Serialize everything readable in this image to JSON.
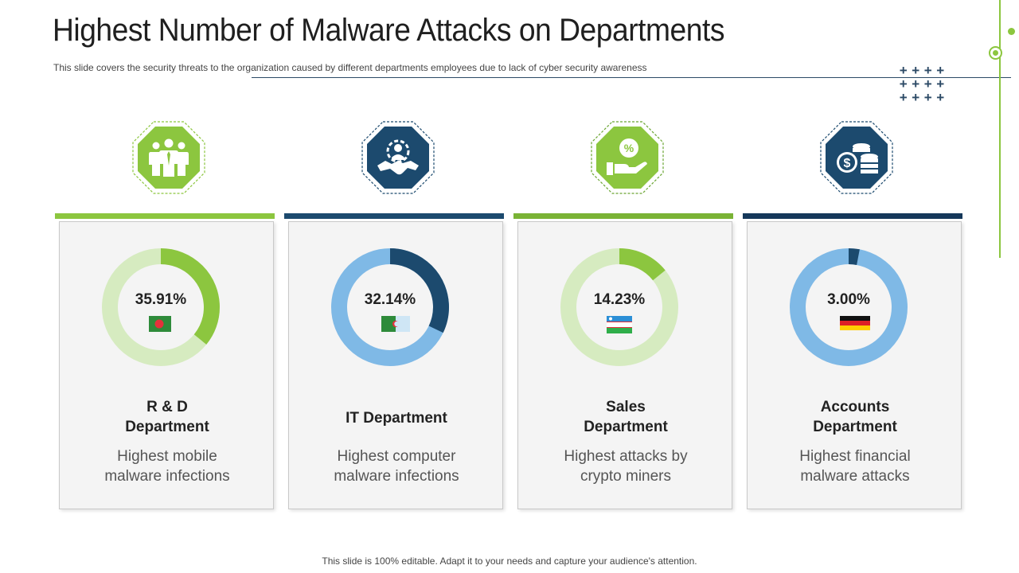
{
  "slide": {
    "title": "Highest Number of Malware Attacks on Departments",
    "subtitle": "This slide covers the security threats to the organization caused by different departments employees due to lack of cyber security awareness",
    "footer": "This slide is 100% editable. Adapt it to your needs and capture your audience's attention."
  },
  "colors": {
    "green": "#8cc63f",
    "green_light": "#d6ebc0",
    "navy": "#1c4a6e",
    "blue_light": "#7fb9e6"
  },
  "departments": [
    {
      "name_line1": "R & D",
      "name_line2": "Department",
      "description_line1": "Highest mobile",
      "description_line2": "malware infections",
      "percent_label": "35.91%",
      "percent_value": 35.91,
      "icon": "team-icon",
      "flag": "bangladesh-flag-icon",
      "theme": "green"
    },
    {
      "name_line1": "IT Department",
      "name_line2": "",
      "description_line1": "Highest computer",
      "description_line2": "malware infections",
      "percent_label": "32.14%",
      "percent_value": 32.14,
      "icon": "handshake-gear-icon",
      "flag": "algeria-flag-icon",
      "theme": "navy"
    },
    {
      "name_line1": "Sales",
      "name_line2": "Department",
      "description_line1": "Highest attacks by",
      "description_line2": "crypto miners",
      "percent_label": "14.23%",
      "percent_value": 14.23,
      "icon": "hand-percent-icon",
      "flag": "uzbekistan-flag-icon",
      "theme": "green"
    },
    {
      "name_line1": "Accounts",
      "name_line2": "Department",
      "description_line1": "Highest financial",
      "description_line2": "malware attacks",
      "percent_label": "3.00%",
      "percent_value": 3.0,
      "icon": "coins-dollar-icon",
      "flag": "germany-flag-icon",
      "theme": "navy"
    }
  ]
}
